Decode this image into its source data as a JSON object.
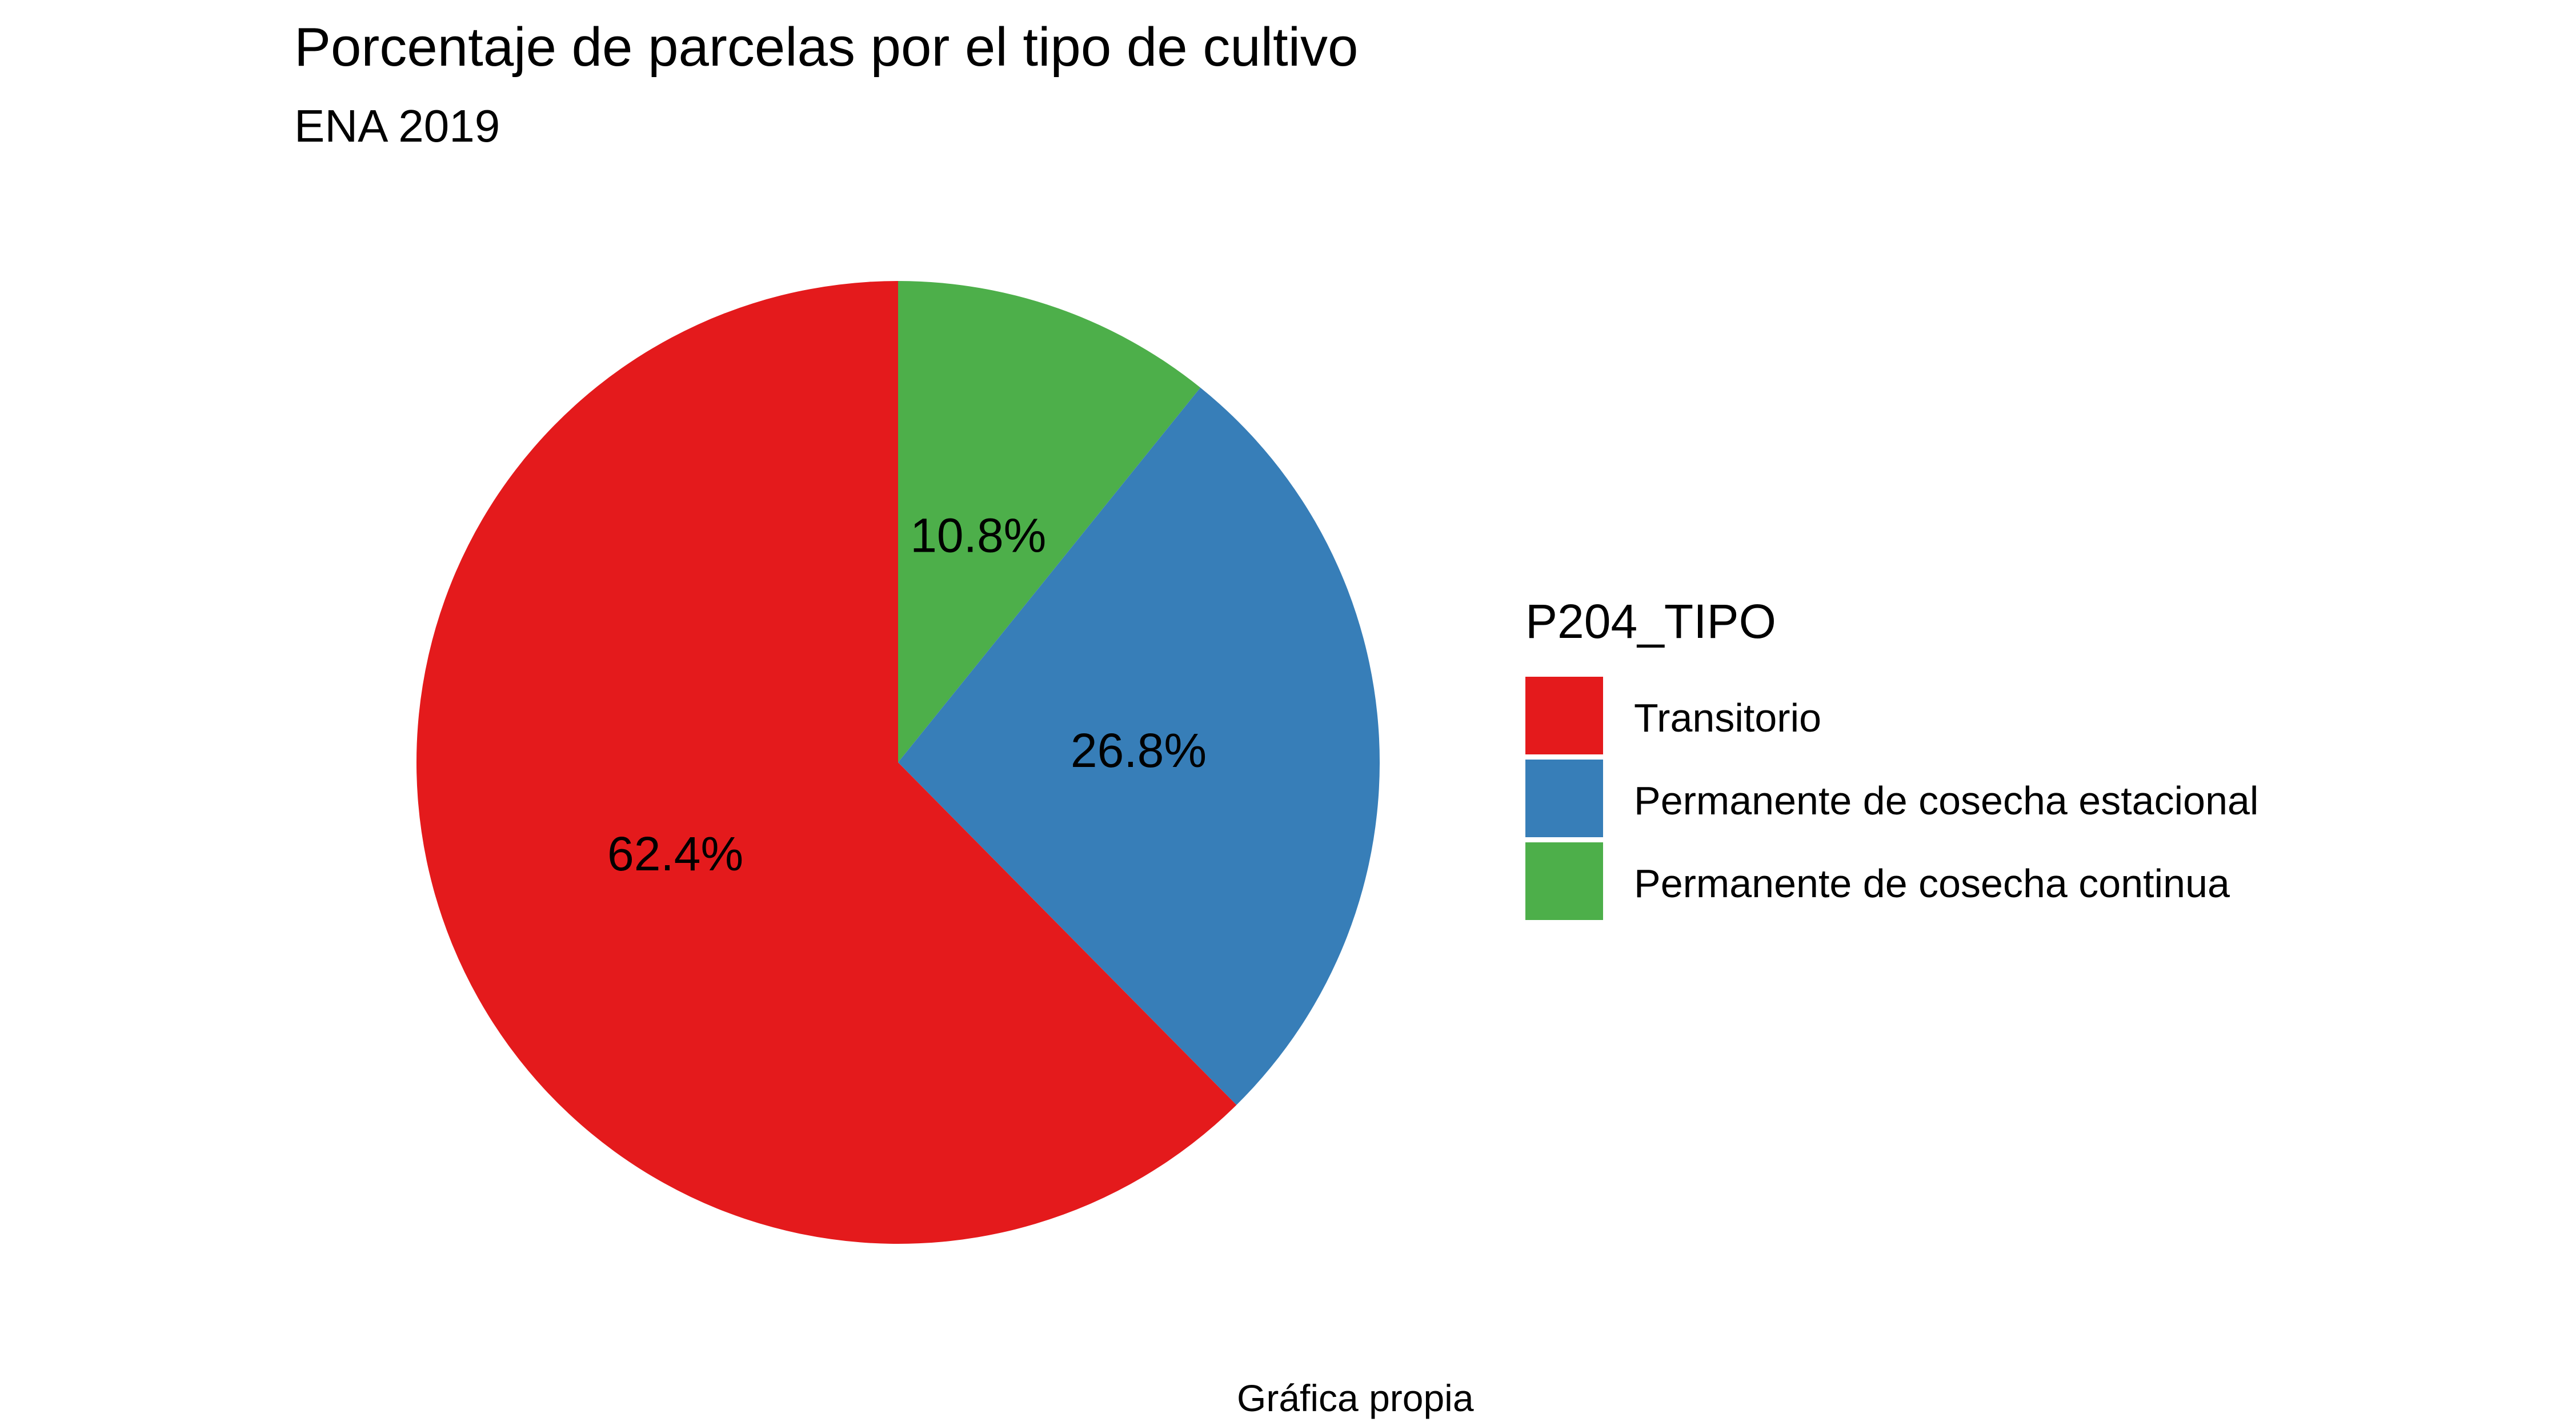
{
  "chart_data": {
    "type": "pie",
    "title": "Porcentaje de parcelas por el tipo de cultivo",
    "subtitle": "ENA 2019",
    "caption": "Gráfica propia",
    "legend_title": "P204_TIPO",
    "legend_position": "right",
    "categories": [
      "Transitorio",
      "Permanente de cosecha estacional",
      "Permanente de cosecha continua"
    ],
    "values": [
      62.4,
      26.8,
      10.8
    ],
    "labels": [
      "62.4%",
      "26.8%",
      "10.8%"
    ],
    "colors": [
      "#E41A1C",
      "#377EB8",
      "#4DAF4A"
    ]
  }
}
